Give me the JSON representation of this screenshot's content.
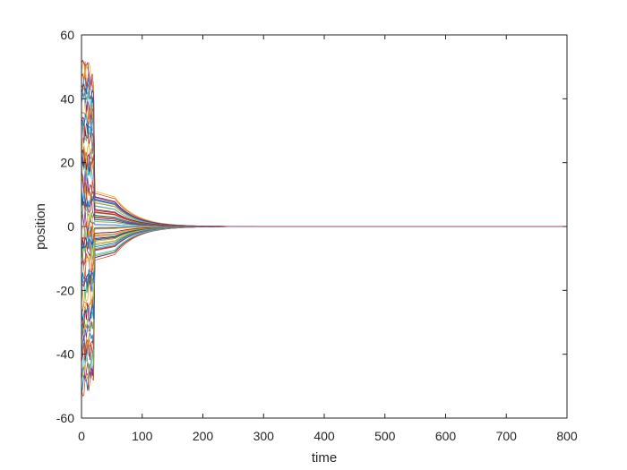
{
  "chart_data": {
    "type": "line",
    "title": "",
    "xlabel": "time",
    "ylabel": "position",
    "xlim": [
      0,
      800
    ],
    "ylim": [
      -60,
      60
    ],
    "xticks": [
      0,
      100,
      200,
      300,
      400,
      500,
      600,
      700,
      800
    ],
    "yticks": [
      -60,
      -40,
      -20,
      0,
      20,
      40,
      60
    ],
    "grid": false,
    "legend": "none",
    "series_count": 60,
    "initial_position_range": [
      -52,
      52
    ],
    "converged_value": 0,
    "convergence_time_approx": 250,
    "colors": [
      "#0072BD",
      "#D95319",
      "#EDB120",
      "#7E2F8E",
      "#77AC30",
      "#4DBEEE",
      "#A2142F"
    ]
  }
}
